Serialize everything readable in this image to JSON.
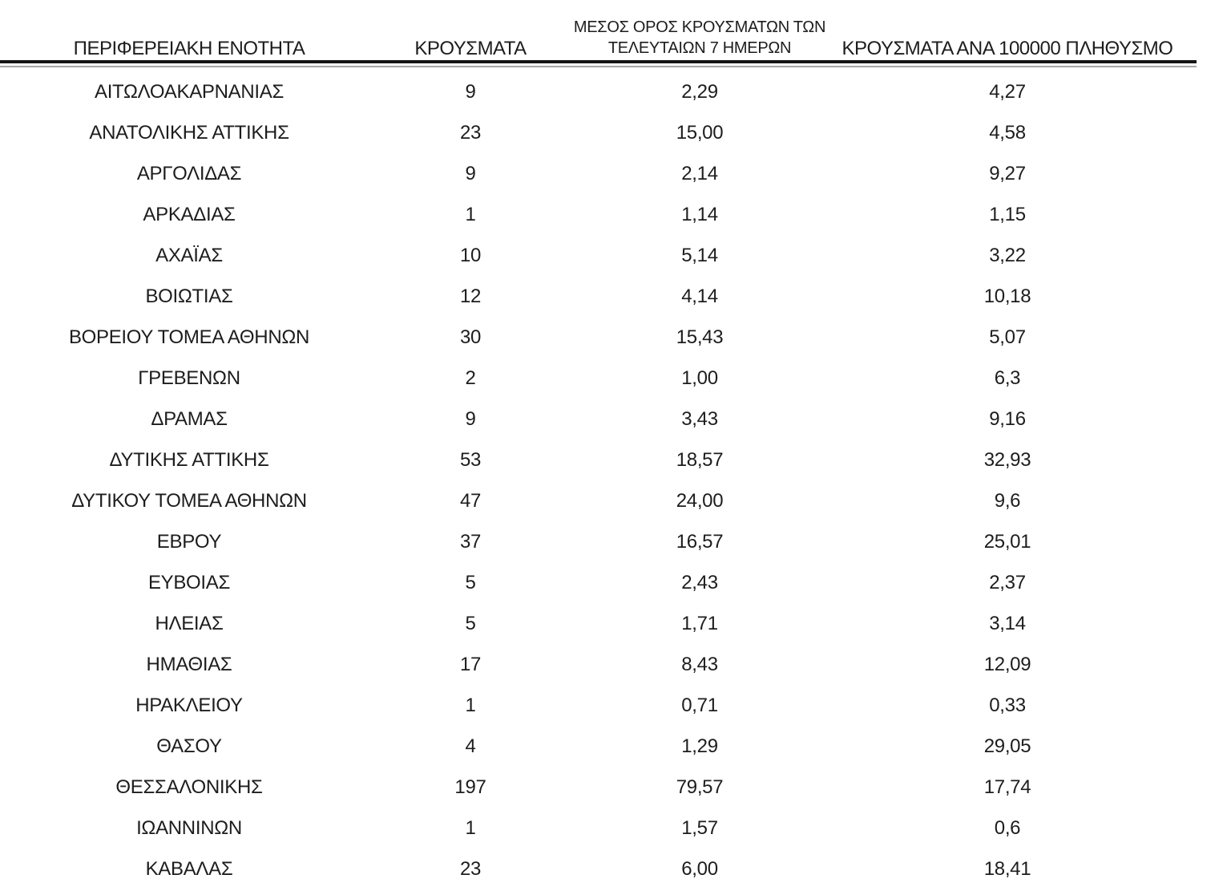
{
  "colors": {
    "background": "#ffffff",
    "text": "#1d1d1d",
    "rule_thick": "#151515",
    "rule_thin": "#a8a8a8"
  },
  "table": {
    "columns": {
      "region": "ΠΕΡΙΦΕΡΕΙΑΚΗ ΕΝΟΤΗΤΑ",
      "cases": "ΚΡΟΥΣΜΑΤΑ",
      "avg_7day_line1": "ΜΕΣΟΣ ΟΡΟΣ ΚΡΟΥΣΜΑΤΩΝ ΤΩΝ",
      "avg_7day_line2": "ΤΕΛΕΥΤΑΙΩΝ 7 ΗΜΕΡΩΝ",
      "per_100k": "ΚΡΟΥΣΜΑΤΑ ΑΝΑ 100000 ΠΛΗΘΥΣΜΟ"
    },
    "rows": [
      {
        "region": "ΑΙΤΩΛΟΑΚΑΡΝΑΝΙΑΣ",
        "cases": "9",
        "avg_7day": "2,29",
        "per_100k": "4,27"
      },
      {
        "region": "ΑΝΑΤΟΛΙΚΗΣ ΑΤΤΙΚΗΣ",
        "cases": "23",
        "avg_7day": "15,00",
        "per_100k": "4,58"
      },
      {
        "region": "ΑΡΓΟΛΙΔΑΣ",
        "cases": "9",
        "avg_7day": "2,14",
        "per_100k": "9,27"
      },
      {
        "region": "ΑΡΚΑΔΙΑΣ",
        "cases": "1",
        "avg_7day": "1,14",
        "per_100k": "1,15"
      },
      {
        "region": "ΑΧΑΪΑΣ",
        "cases": "10",
        "avg_7day": "5,14",
        "per_100k": "3,22"
      },
      {
        "region": "ΒΟΙΩΤΙΑΣ",
        "cases": "12",
        "avg_7day": "4,14",
        "per_100k": "10,18"
      },
      {
        "region": "ΒΟΡΕΙΟΥ ΤΟΜΕΑ ΑΘΗΝΩΝ",
        "cases": "30",
        "avg_7day": "15,43",
        "per_100k": "5,07"
      },
      {
        "region": "ΓΡΕΒΕΝΩΝ",
        "cases": "2",
        "avg_7day": "1,00",
        "per_100k": "6,3"
      },
      {
        "region": "ΔΡΑΜΑΣ",
        "cases": "9",
        "avg_7day": "3,43",
        "per_100k": "9,16"
      },
      {
        "region": "ΔΥΤΙΚΗΣ ΑΤΤΙΚΗΣ",
        "cases": "53",
        "avg_7day": "18,57",
        "per_100k": "32,93"
      },
      {
        "region": "ΔΥΤΙΚΟΥ ΤΟΜΕΑ ΑΘΗΝΩΝ",
        "cases": "47",
        "avg_7day": "24,00",
        "per_100k": "9,6"
      },
      {
        "region": "ΕΒΡΟΥ",
        "cases": "37",
        "avg_7day": "16,57",
        "per_100k": "25,01"
      },
      {
        "region": "ΕΥΒΟΙΑΣ",
        "cases": "5",
        "avg_7day": "2,43",
        "per_100k": "2,37"
      },
      {
        "region": "ΗΛΕΙΑΣ",
        "cases": "5",
        "avg_7day": "1,71",
        "per_100k": "3,14"
      },
      {
        "region": "ΗΜΑΘΙΑΣ",
        "cases": "17",
        "avg_7day": "8,43",
        "per_100k": "12,09"
      },
      {
        "region": "ΗΡΑΚΛΕΙΟΥ",
        "cases": "1",
        "avg_7day": "0,71",
        "per_100k": "0,33"
      },
      {
        "region": "ΘΑΣΟΥ",
        "cases": "4",
        "avg_7day": "1,29",
        "per_100k": "29,05"
      },
      {
        "region": "ΘΕΣΣΑΛΟΝΙΚΗΣ",
        "cases": "197",
        "avg_7day": "79,57",
        "per_100k": "17,74"
      },
      {
        "region": "ΙΩΑΝΝΙΝΩΝ",
        "cases": "1",
        "avg_7day": "1,57",
        "per_100k": "0,6"
      },
      {
        "region": "ΚΑΒΑΛΑΣ",
        "cases": "23",
        "avg_7day": "6,00",
        "per_100k": "18,41"
      }
    ]
  }
}
